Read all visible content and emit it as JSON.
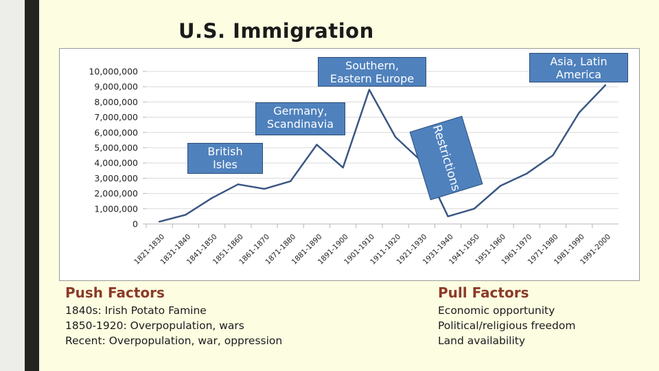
{
  "slide": {
    "title": "U.S. Immigration"
  },
  "callouts": {
    "british": [
      "British",
      "Isles"
    ],
    "germany": [
      "Germany,",
      "Scandinavia"
    ],
    "southern": [
      "Southern,",
      "Eastern Europe"
    ],
    "restrictions": "Restrictions",
    "asia": [
      "Asia, Latin",
      "America"
    ]
  },
  "push_factors": {
    "heading": "Push Factors",
    "items": [
      "1840s:  Irish Potato Famine",
      "1850-1920: Overpopulation, wars",
      "Recent:  Overpopulation, war, oppression"
    ]
  },
  "pull_factors": {
    "heading": "Pull Factors",
    "items": [
      "Economic opportunity",
      "Political/religious freedom",
      "Land availability"
    ]
  },
  "chart_data": {
    "type": "line",
    "title": "",
    "xlabel": "",
    "ylabel": "",
    "ylim": [
      0,
      10000000
    ],
    "yticks": [
      0,
      1000000,
      2000000,
      3000000,
      4000000,
      5000000,
      6000000,
      7000000,
      8000000,
      9000000,
      10000000
    ],
    "ytick_labels": [
      "0",
      "1,000,000",
      "2,000,000",
      "3,000,000",
      "4,000,000",
      "5,000,000",
      "6,000,000",
      "7,000,000",
      "8,000,000",
      "9,000,000",
      "10,000,000"
    ],
    "categories": [
      "1821-1830",
      "1831-1840",
      "1841-1850",
      "1851-1860",
      "1861-1870",
      "1871-1880",
      "1881-1890",
      "1891-1900",
      "1901-1910",
      "1911-1920",
      "1921-1930",
      "1931-1940",
      "1941-1950",
      "1951-1960",
      "1961-1970",
      "1971-1980",
      "1981-1990",
      "1991-2000"
    ],
    "series": [
      {
        "values": [
          150000,
          600000,
          1700000,
          2600000,
          2300000,
          2800000,
          5200000,
          3700000,
          8800000,
          5700000,
          4100000,
          500000,
          1000000,
          2500000,
          3300000,
          4500000,
          7300000,
          9100000
        ],
        "color": "#3a5683"
      }
    ],
    "grid": true,
    "legend": "none"
  }
}
